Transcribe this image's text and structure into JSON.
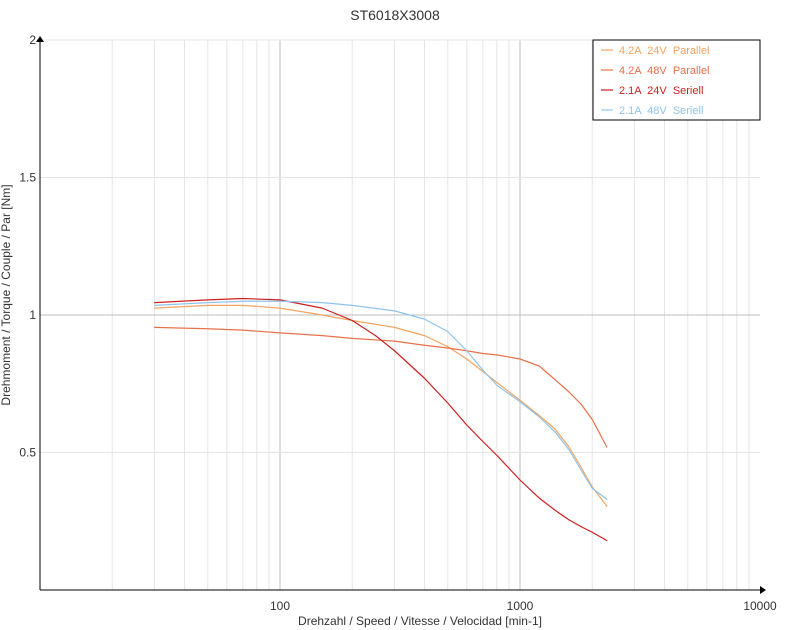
{
  "chart_data": {
    "type": "line",
    "title": "ST6018X3008",
    "xlabel": "Drehzahl / Speed / Vitesse / Velocidad [min-1]",
    "ylabel": "Drehmoment / Torque / Couple / Par [Nm]",
    "x_scale": "log",
    "xlim": [
      10,
      10000
    ],
    "ylim": [
      0,
      2
    ],
    "x_ticks": [
      {
        "value": 100,
        "label": "100"
      },
      {
        "value": 1000,
        "label": "1000"
      },
      {
        "value": 10000,
        "label": "10000"
      }
    ],
    "y_ticks": [
      {
        "value": 0.5,
        "label": "0.5"
      },
      {
        "value": 1,
        "label": "1"
      },
      {
        "value": 1.5,
        "label": "1.5"
      },
      {
        "value": 2,
        "label": "2"
      }
    ],
    "grid": true,
    "legend_position": "top-right",
    "series": [
      {
        "name": "4.2A  24V  Parallel",
        "color": "#f4a460",
        "points": [
          [
            30,
            1.025
          ],
          [
            50,
            1.035
          ],
          [
            70,
            1.035
          ],
          [
            100,
            1.025
          ],
          [
            150,
            1.0
          ],
          [
            200,
            0.98
          ],
          [
            300,
            0.955
          ],
          [
            400,
            0.925
          ],
          [
            500,
            0.885
          ],
          [
            600,
            0.84
          ],
          [
            700,
            0.795
          ],
          [
            800,
            0.755
          ],
          [
            1000,
            0.69
          ],
          [
            1200,
            0.635
          ],
          [
            1400,
            0.585
          ],
          [
            1600,
            0.52
          ],
          [
            1800,
            0.445
          ],
          [
            2000,
            0.375
          ],
          [
            2300,
            0.305
          ]
        ]
      },
      {
        "name": "4.2A  48V  Parallel",
        "color": "#e8704a",
        "points": [
          [
            30,
            0.955
          ],
          [
            50,
            0.95
          ],
          [
            70,
            0.945
          ],
          [
            100,
            0.935
          ],
          [
            150,
            0.925
          ],
          [
            200,
            0.915
          ],
          [
            300,
            0.905
          ],
          [
            400,
            0.89
          ],
          [
            500,
            0.88
          ],
          [
            600,
            0.87
          ],
          [
            700,
            0.86
          ],
          [
            800,
            0.855
          ],
          [
            1000,
            0.84
          ],
          [
            1200,
            0.815
          ],
          [
            1400,
            0.765
          ],
          [
            1600,
            0.72
          ],
          [
            1800,
            0.675
          ],
          [
            2000,
            0.62
          ],
          [
            2300,
            0.52
          ]
        ]
      },
      {
        "name": "2.1A  24V  Seriell",
        "color": "#cc1f1f",
        "points": [
          [
            30,
            1.045
          ],
          [
            50,
            1.055
          ],
          [
            70,
            1.06
          ],
          [
            100,
            1.055
          ],
          [
            150,
            1.025
          ],
          [
            200,
            0.98
          ],
          [
            250,
            0.925
          ],
          [
            300,
            0.87
          ],
          [
            400,
            0.77
          ],
          [
            500,
            0.68
          ],
          [
            600,
            0.6
          ],
          [
            700,
            0.54
          ],
          [
            800,
            0.49
          ],
          [
            1000,
            0.4
          ],
          [
            1200,
            0.335
          ],
          [
            1400,
            0.29
          ],
          [
            1600,
            0.255
          ],
          [
            1800,
            0.23
          ],
          [
            2000,
            0.21
          ],
          [
            2300,
            0.18
          ]
        ]
      },
      {
        "name": "2.1A  48V  Seriell",
        "color": "#8ec4ec",
        "points": [
          [
            30,
            1.035
          ],
          [
            50,
            1.045
          ],
          [
            70,
            1.05
          ],
          [
            100,
            1.05
          ],
          [
            150,
            1.045
          ],
          [
            200,
            1.035
          ],
          [
            300,
            1.015
          ],
          [
            400,
            0.985
          ],
          [
            500,
            0.94
          ],
          [
            600,
            0.87
          ],
          [
            700,
            0.8
          ],
          [
            800,
            0.745
          ],
          [
            1000,
            0.685
          ],
          [
            1200,
            0.63
          ],
          [
            1400,
            0.575
          ],
          [
            1600,
            0.51
          ],
          [
            1800,
            0.435
          ],
          [
            2000,
            0.37
          ],
          [
            2300,
            0.33
          ]
        ]
      }
    ]
  }
}
